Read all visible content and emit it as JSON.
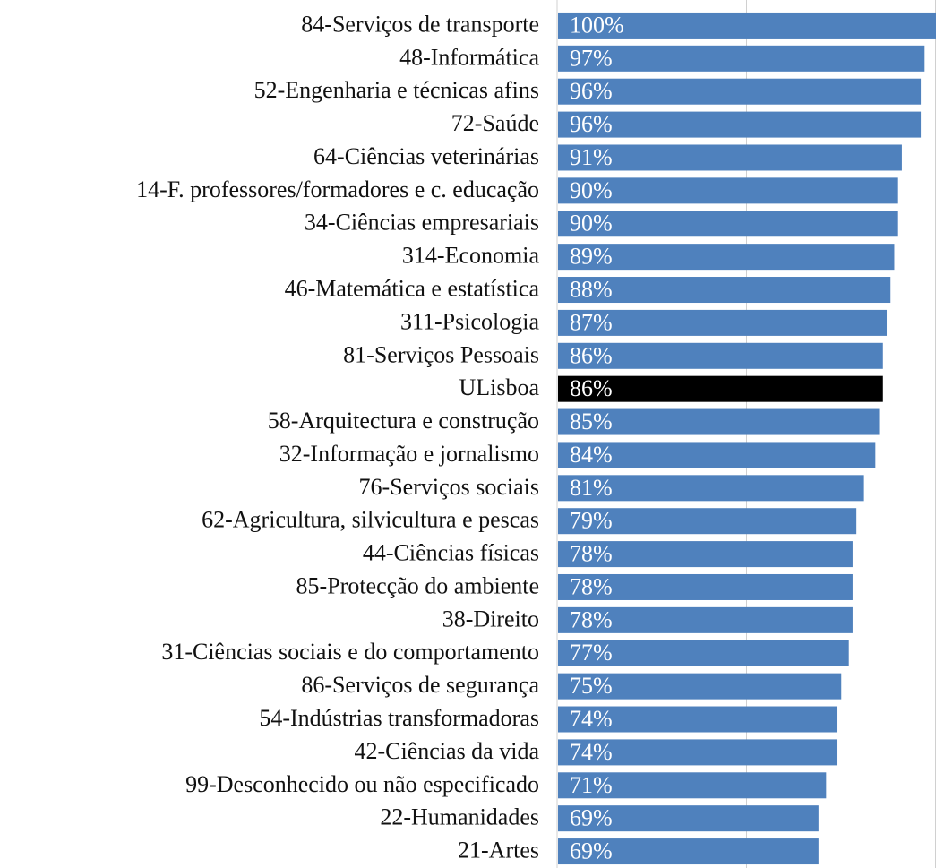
{
  "chart_data": {
    "type": "bar",
    "orientation": "horizontal",
    "categories": [
      "84-Serviços de transporte",
      "48-Informática",
      "52-Engenharia e técnicas afins",
      "72-Saúde",
      "64-Ciências veterinárias",
      "14-F. professores/formadores e c. educação",
      "34-Ciências empresariais",
      "314-Economia",
      "46-Matemática e estatística",
      "311-Psicologia",
      "81-Serviços Pessoais",
      "ULisboa",
      "58-Arquitectura e construção",
      "32-Informação e jornalismo",
      "76-Serviços sociais",
      "62-Agricultura, silvicultura e pescas",
      "44-Ciências físicas",
      "85-Protecção do ambiente",
      "38-Direito",
      "31-Ciências sociais e do comportamento",
      "86-Serviços de segurança",
      "54-Indústrias transformadoras",
      "42-Ciências da vida",
      "99-Desconhecido ou não especificado",
      "22-Humanidades",
      "21-Artes"
    ],
    "values": [
      100,
      97,
      96,
      96,
      91,
      90,
      90,
      89,
      88,
      87,
      86,
      86,
      85,
      84,
      81,
      79,
      78,
      78,
      78,
      77,
      75,
      74,
      74,
      71,
      69,
      69
    ],
    "value_labels": [
      "100%",
      "97%",
      "96%",
      "96%",
      "91%",
      "90%",
      "90%",
      "89%",
      "88%",
      "87%",
      "86%",
      "86%",
      "85%",
      "84%",
      "81%",
      "79%",
      "78%",
      "78%",
      "78%",
      "77%",
      "75%",
      "74%",
      "74%",
      "71%",
      "69%",
      "69%"
    ],
    "colors": [
      "#4f81bd",
      "#4f81bd",
      "#4f81bd",
      "#4f81bd",
      "#4f81bd",
      "#4f81bd",
      "#4f81bd",
      "#4f81bd",
      "#4f81bd",
      "#4f81bd",
      "#4f81bd",
      "#000000",
      "#4f81bd",
      "#4f81bd",
      "#4f81bd",
      "#4f81bd",
      "#4f81bd",
      "#4f81bd",
      "#4f81bd",
      "#4f81bd",
      "#4f81bd",
      "#4f81bd",
      "#4f81bd",
      "#4f81bd",
      "#4f81bd",
      "#4f81bd"
    ],
    "xlim": [
      0,
      100
    ],
    "xticks": [
      0,
      50,
      100
    ],
    "grid": true
  }
}
